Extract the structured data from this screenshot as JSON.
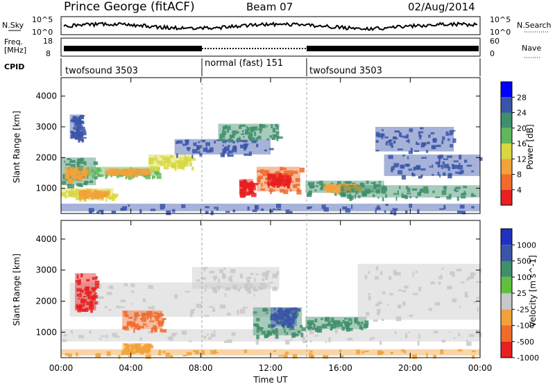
{
  "header": {
    "title": "Prince George (fitACF)",
    "beam": "Beam 07",
    "date": "02/Aug/2014"
  },
  "noise_panel": {
    "left_label": "N.Sky",
    "right_label": "N.Search",
    "left_ticks": [
      "10^5",
      "10^0"
    ],
    "right_ticks": [
      "10^5",
      "10^0"
    ]
  },
  "freq_panel": {
    "left_label_1": "Freq.",
    "left_label_2": "[MHz]",
    "left_ticks": [
      "18",
      "8"
    ],
    "right_label": "Nave",
    "right_ticks": [
      "60",
      "0"
    ]
  },
  "cpid": {
    "label": "CPID",
    "segments": [
      {
        "start": 0,
        "end": 8,
        "text": "twofsound 3503"
      },
      {
        "start": 8,
        "end": 14,
        "text": "normal (fast) 151"
      },
      {
        "start": 14,
        "end": 24,
        "text": "twofsound 3503"
      }
    ]
  },
  "chart_data": [
    {
      "type": "heatmap",
      "panel": "power",
      "ylabel": "Slant Range [km]",
      "yticks": [
        "1000",
        "2000",
        "3000",
        "4000"
      ],
      "ylim": [
        180,
        4600
      ],
      "xlim": [
        0,
        24
      ],
      "colorbar": {
        "label": "Power [dB]",
        "labels": [
          "4",
          "8",
          "12",
          "16",
          "20",
          "24",
          "28"
        ],
        "colors": [
          "#0000ff",
          "#3a55a8",
          "#3f8f6a",
          "#5fb85a",
          "#d8d840",
          "#f2a23a",
          "#f06b2b",
          "#e82020"
        ]
      },
      "regions": [
        {
          "t0": 0.0,
          "t1": 2.0,
          "r0": 1100,
          "r1": 2000,
          "color": "#3f8f6a"
        },
        {
          "t0": 0.2,
          "t1": 1.5,
          "r0": 1300,
          "r1": 1700,
          "color": "#f2a23a"
        },
        {
          "t0": 0.5,
          "t1": 1.2,
          "r0": 2600,
          "r1": 3400,
          "color": "#3a55a8"
        },
        {
          "t0": 0.0,
          "t1": 3.0,
          "r0": 700,
          "r1": 1000,
          "color": "#d8d840"
        },
        {
          "t0": 1.0,
          "t1": 2.5,
          "r0": 750,
          "r1": 950,
          "color": "#f2a23a"
        },
        {
          "t0": 1.5,
          "t1": 5.5,
          "r0": 1400,
          "r1": 1700,
          "color": "#5fb85a"
        },
        {
          "t0": 2.5,
          "t1": 5.0,
          "r0": 1500,
          "r1": 1650,
          "color": "#f2a23a"
        },
        {
          "t0": 5.0,
          "t1": 7.5,
          "r0": 1700,
          "r1": 2100,
          "color": "#d8d840"
        },
        {
          "t0": 6.5,
          "t1": 12.0,
          "r0": 2100,
          "r1": 2600,
          "color": "#3a55a8"
        },
        {
          "t0": 9.0,
          "t1": 12.5,
          "r0": 2600,
          "r1": 3100,
          "color": "#3f8f6a"
        },
        {
          "t0": 11.2,
          "t1": 13.7,
          "r0": 900,
          "r1": 1700,
          "color": "#f06b2b"
        },
        {
          "t0": 11.8,
          "t1": 13.0,
          "r0": 1100,
          "r1": 1500,
          "color": "#e82020"
        },
        {
          "t0": 10.2,
          "t1": 11.0,
          "r0": 800,
          "r1": 1300,
          "color": "#e82020"
        },
        {
          "t0": 14.0,
          "t1": 18.5,
          "r0": 850,
          "r1": 1250,
          "color": "#3f8f6a"
        },
        {
          "t0": 15.0,
          "t1": 17.0,
          "r0": 950,
          "r1": 1150,
          "color": "#f2a23a"
        },
        {
          "t0": 16.0,
          "t1": 24.0,
          "r0": 700,
          "r1": 1100,
          "color": "#3f8f6a"
        },
        {
          "t0": 18.5,
          "t1": 24.0,
          "r0": 1400,
          "r1": 2100,
          "color": "#3a55a8"
        },
        {
          "t0": 18.0,
          "t1": 22.5,
          "r0": 2200,
          "r1": 3000,
          "color": "#3a55a8"
        },
        {
          "t0": 0.0,
          "t1": 24.0,
          "r0": 250,
          "r1": 500,
          "color": "#3a55a8"
        }
      ]
    },
    {
      "type": "heatmap",
      "panel": "velocity",
      "ylabel": "Slant Range [km]",
      "yticks": [
        "1000",
        "2000",
        "3000",
        "4000"
      ],
      "ylim": [
        180,
        4600
      ],
      "xlim": [
        0,
        24
      ],
      "xticks": [
        "00:00",
        "04:00",
        "08:00",
        "12:00",
        "16:00",
        "20:00",
        "00:00"
      ],
      "xlabel": "Time UT",
      "colorbar": {
        "label": "Velocity [m s^-1]",
        "labels": [
          "1000",
          "500",
          "100",
          "25",
          "-25",
          "-100",
          "-500",
          "-1000"
        ],
        "colors": [
          "#2030c0",
          "#3a55a8",
          "#3f8f6a",
          "#5fc040",
          "#c8c8c8",
          "#f2a23a",
          "#f06b2b",
          "#e82020"
        ]
      },
      "regions": [
        {
          "t0": 0.0,
          "t1": 24.0,
          "r0": 700,
          "r1": 1100,
          "color": "#c8c8c8"
        },
        {
          "t0": 0.5,
          "t1": 12.0,
          "r0": 1500,
          "r1": 2600,
          "color": "#c8c8c8"
        },
        {
          "t0": 0.8,
          "t1": 2.0,
          "r0": 1700,
          "r1": 2900,
          "color": "#e82020"
        },
        {
          "t0": 3.5,
          "t1": 5.8,
          "r0": 1100,
          "r1": 1700,
          "color": "#f06b2b"
        },
        {
          "t0": 3.5,
          "t1": 5.0,
          "r0": 400,
          "r1": 650,
          "color": "#f2a23a"
        },
        {
          "t0": 7.5,
          "t1": 12.5,
          "r0": 2400,
          "r1": 3100,
          "color": "#c8c8c8"
        },
        {
          "t0": 11.0,
          "t1": 13.8,
          "r0": 900,
          "r1": 1800,
          "color": "#3f8f6a"
        },
        {
          "t0": 12.0,
          "t1": 13.5,
          "r0": 1200,
          "r1": 1800,
          "color": "#3a55a8"
        },
        {
          "t0": 14.0,
          "t1": 17.5,
          "r0": 1100,
          "r1": 1500,
          "color": "#3f8f6a"
        },
        {
          "t0": 17.0,
          "t1": 24.0,
          "r0": 1400,
          "r1": 3200,
          "color": "#c8c8c8"
        },
        {
          "t0": 0.0,
          "t1": 24.0,
          "r0": 250,
          "r1": 450,
          "color": "#f2a23a"
        }
      ]
    }
  ]
}
